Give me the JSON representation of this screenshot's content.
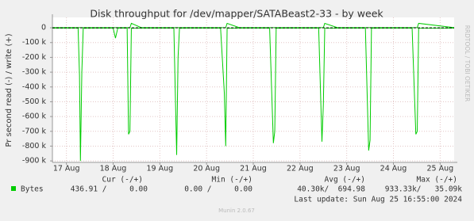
{
  "chart_data": {
    "type": "line",
    "title": "Disk throughput for /dev/mapper/SATABeast2-33 - by week",
    "y_label": "Pr second read (-) / write (+)",
    "side_label": "RRDTOOL / TOBI OETIKER",
    "x": [
      16.7,
      17.25,
      17.28,
      17.3,
      17.33,
      17.36,
      17.6,
      18.0,
      18.05,
      18.1,
      18.3,
      18.33,
      18.36,
      18.39,
      18.6,
      19.3,
      19.36,
      19.39,
      19.42,
      19.6,
      20.3,
      20.38,
      20.41,
      20.44,
      20.7,
      21.35,
      21.43,
      21.46,
      21.49,
      21.7,
      22.4,
      22.47,
      22.5,
      22.53,
      22.8,
      23.4,
      23.47,
      23.5,
      23.53,
      23.8,
      24.4,
      24.48,
      24.51,
      24.54,
      25.3
    ],
    "series": [
      {
        "name": "Bytes",
        "color": "#00cc00",
        "values": [
          -2000,
          -2000,
          -320000,
          -900000,
          -300000,
          -3000,
          -2000,
          -2000,
          -70000,
          -2000,
          -2000,
          -720000,
          -700000,
          -3000,
          -2000,
          -2000,
          -860000,
          -200000,
          -3000,
          -2000,
          -2000,
          -440000,
          -800000,
          -3000,
          -2000,
          -2000,
          -780000,
          -700000,
          -3000,
          -2000,
          -2000,
          -770000,
          -520000,
          -3000,
          -2000,
          -2000,
          -830000,
          -760000,
          -3000,
          -2000,
          -2000,
          -720000,
          -700000,
          -3000,
          -2000
        ]
      },
      {
        "color": "#00cc00",
        "values": [
          1000,
          1000,
          1000,
          1000,
          1000,
          1000,
          1000,
          1000,
          1000,
          1000,
          1000,
          1000,
          1000,
          30000,
          1000,
          1000,
          1000,
          1000,
          1000,
          1000,
          1000,
          1000,
          1000,
          30000,
          1000,
          1000,
          1000,
          1000,
          1000,
          1000,
          1000,
          1000,
          1000,
          30000,
          1000,
          1000,
          1000,
          1000,
          1000,
          1000,
          1000,
          1000,
          1000,
          30000,
          1000
        ]
      }
    ],
    "xlim": [
      16.7,
      25.3
    ],
    "xticks": [
      {
        "value": 17,
        "label": "17 Aug"
      },
      {
        "value": 18,
        "label": "18 Aug"
      },
      {
        "value": 19,
        "label": "19 Aug"
      },
      {
        "value": 20,
        "label": "20 Aug"
      },
      {
        "value": 21,
        "label": "21 Aug"
      },
      {
        "value": 22,
        "label": "22 Aug"
      },
      {
        "value": 23,
        "label": "23 Aug"
      },
      {
        "value": 24,
        "label": "24 Aug"
      },
      {
        "value": 25,
        "label": "25 Aug"
      }
    ],
    "ylim": [
      -910000,
      70000
    ],
    "yticks": [
      0,
      {
        "value": -100000,
        "label": "-100 k"
      },
      {
        "value": -200000,
        "label": "-200 k"
      },
      {
        "value": -300000,
        "label": "-300 k"
      },
      {
        "value": -400000,
        "label": "-400 k"
      },
      {
        "value": -500000,
        "label": "-500 k"
      },
      {
        "value": -600000,
        "label": "-600 k"
      },
      {
        "value": -700000,
        "label": "-700 k"
      },
      {
        "value": -800000,
        "label": "-800 k"
      },
      {
        "value": -900000,
        "label": "-900 k"
      }
    ],
    "grid": true
  },
  "legend_table": {
    "headers": [
      "Cur (-/+)",
      "Min (-/+)",
      "Avg (-/+)",
      "Max (-/+)"
    ],
    "row": [
      "436.91 /     0.00",
      "0.00 /     0.00",
      "40.30k/  694.98",
      "933.33k/   35.09k"
    ]
  },
  "last_update": "Last update: Sun Aug 25 16:55:00 2024",
  "footer": "Munin 2.0.67"
}
